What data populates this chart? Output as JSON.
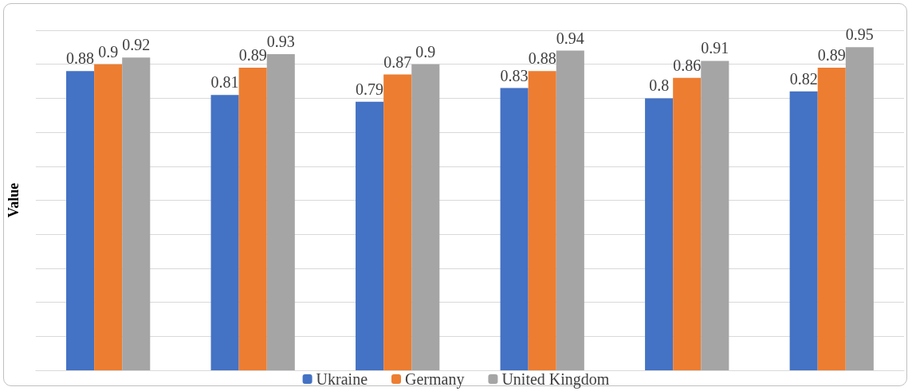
{
  "chart_data": {
    "type": "bar",
    "ylabel": "Value",
    "categories": [
      null,
      null,
      null,
      null,
      null,
      null
    ],
    "series": [
      {
        "name": "Ukraine",
        "color": "#4472c4",
        "values": [
          0.88,
          0.81,
          0.79,
          0.83,
          0.8,
          0.82
        ]
      },
      {
        "name": "Germany",
        "color": "#ed7d31",
        "values": [
          0.9,
          0.89,
          0.87,
          0.88,
          0.86,
          0.89
        ]
      },
      {
        "name": "United Kingdom",
        "color": "#a5a5a5",
        "values": [
          0.92,
          0.93,
          0.9,
          0.94,
          0.91,
          0.95
        ]
      }
    ],
    "ylim": [
      0,
      1
    ],
    "yticks": [
      {
        "value": 0,
        "label": null
      },
      {
        "value": 0.1,
        "label": null
      },
      {
        "value": 0.2,
        "label": null
      },
      {
        "value": 0.3,
        "label": null
      },
      {
        "value": 0.4,
        "label": null
      },
      {
        "value": 0.5,
        "label": null
      },
      {
        "value": 0.6,
        "label": null
      },
      {
        "value": 0.7,
        "label": null
      },
      {
        "value": 0.8,
        "label": null
      },
      {
        "value": 0.9,
        "label": null
      },
      {
        "value": 1,
        "label": null
      }
    ],
    "grid": "y",
    "legend": "bottom",
    "data_labels": true
  }
}
